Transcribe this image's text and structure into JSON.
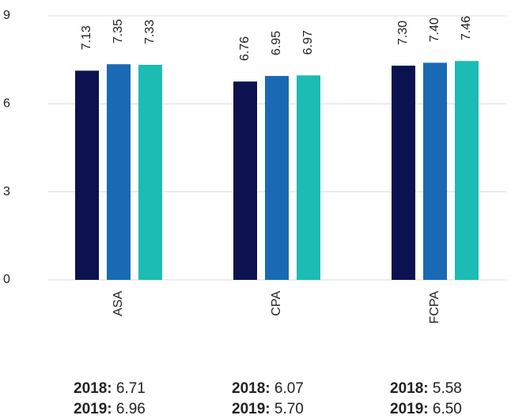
{
  "chart_data": {
    "type": "bar",
    "categories": [
      "ASA",
      "CPA",
      "FCPA"
    ],
    "series": [
      {
        "color": "#0b124f",
        "values": [
          7.13,
          6.76,
          7.3
        ],
        "value_labels": [
          "7.13",
          "6.76",
          "7.30"
        ]
      },
      {
        "color": "#1a69b5",
        "values": [
          7.35,
          6.95,
          7.4
        ],
        "value_labels": [
          "7.35",
          "6.95",
          "7.40"
        ]
      },
      {
        "color": "#1bbcb4",
        "values": [
          7.33,
          6.97,
          7.46
        ],
        "value_labels": [
          "7.33",
          "6.97",
          "7.46"
        ]
      }
    ],
    "ylim": [
      0,
      9
    ],
    "yticks": [
      0,
      3,
      6,
      9
    ],
    "grid": true,
    "annotations": [
      [
        {
          "year": "2018:",
          "value": "6.71"
        },
        {
          "year": "2019:",
          "value": "6.96"
        }
      ],
      [
        {
          "year": "2018:",
          "value": "6.07"
        },
        {
          "year": "2019:",
          "value": "5.70"
        }
      ],
      [
        {
          "year": "2018:",
          "value": "5.58"
        },
        {
          "year": "2019:",
          "value": "6.50"
        }
      ]
    ]
  }
}
